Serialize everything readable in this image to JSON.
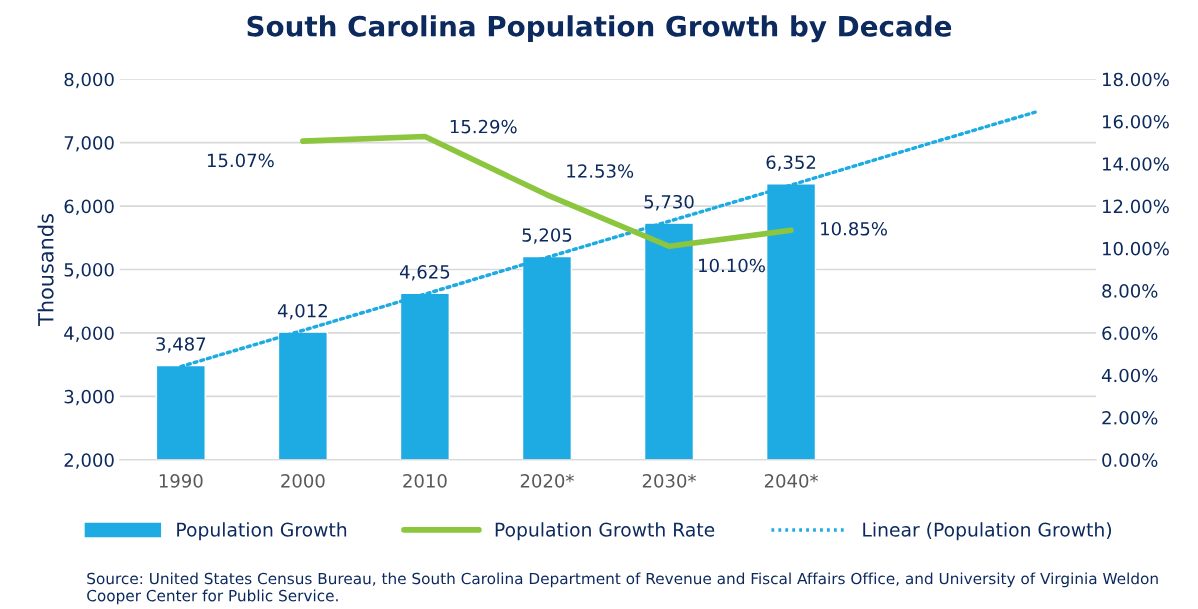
{
  "chart_data": {
    "type": "bar",
    "title": "South Carolina Population Growth by Decade",
    "categories": [
      "1990",
      "2000",
      "2010",
      "2020*",
      "2030*",
      "2040*",
      null,
      null
    ],
    "series": [
      {
        "name": "Population Growth",
        "color": "#1eabe3",
        "values": [
          3487,
          4012,
          4625,
          5205,
          5730,
          6352,
          null,
          null
        ],
        "value_labels": [
          "3,487",
          "4,012",
          "4,625",
          "5,205",
          "5,730",
          "6,352",
          null,
          null
        ]
      },
      {
        "name": "Population Growth Rate",
        "type": "line",
        "axis": "y2",
        "color": "#8cc63f",
        "line_style": "solid",
        "values": [
          null,
          15.07,
          15.29,
          12.53,
          10.1,
          10.85,
          null,
          null
        ],
        "value_labels": [
          null,
          "15.07%",
          "15.29%",
          "12.53%",
          "10.10%",
          "10.85%",
          null,
          null
        ]
      },
      {
        "name": "Linear (Population Growth)",
        "type": "line",
        "color": "#1eabe3",
        "line_style": "dotted",
        "values": [
          3470,
          4040,
          4610,
          5190,
          5760,
          6330,
          6910,
          7480
        ]
      }
    ],
    "ylabel": "Thousands",
    "ylim": [
      2000,
      8000
    ],
    "yticks": [
      {
        "value": 2000,
        "label": "2,000"
      },
      {
        "value": 3000,
        "label": "3,000"
      },
      {
        "value": 4000,
        "label": "4,000"
      },
      {
        "value": 5000,
        "label": "5,000"
      },
      {
        "value": 6000,
        "label": "6,000"
      },
      {
        "value": 7000,
        "label": "7,000"
      },
      {
        "value": 8000,
        "label": "8,000"
      }
    ],
    "y2lim": [
      0,
      18
    ],
    "y2ticks": [
      {
        "value": 0,
        "label": "0.00%"
      },
      {
        "value": 2,
        "label": "2.00%"
      },
      {
        "value": 4,
        "label": "4.00%"
      },
      {
        "value": 6,
        "label": "6.00%"
      },
      {
        "value": 8,
        "label": "8.00%"
      },
      {
        "value": 10,
        "label": "10.00%"
      },
      {
        "value": 12,
        "label": "12.00%"
      },
      {
        "value": 14,
        "label": "14.00%"
      },
      {
        "value": 16,
        "label": "16.00%"
      },
      {
        "value": 18,
        "label": "18.00%"
      }
    ],
    "grid": "y",
    "legend": "bottom",
    "marker": "none",
    "annotations": [
      "Source: United States Census Bureau, the South Carolina Department of Revenue and Fiscal Affairs Office, and University of Virginia Weldon Cooper Center for Public Service."
    ]
  }
}
